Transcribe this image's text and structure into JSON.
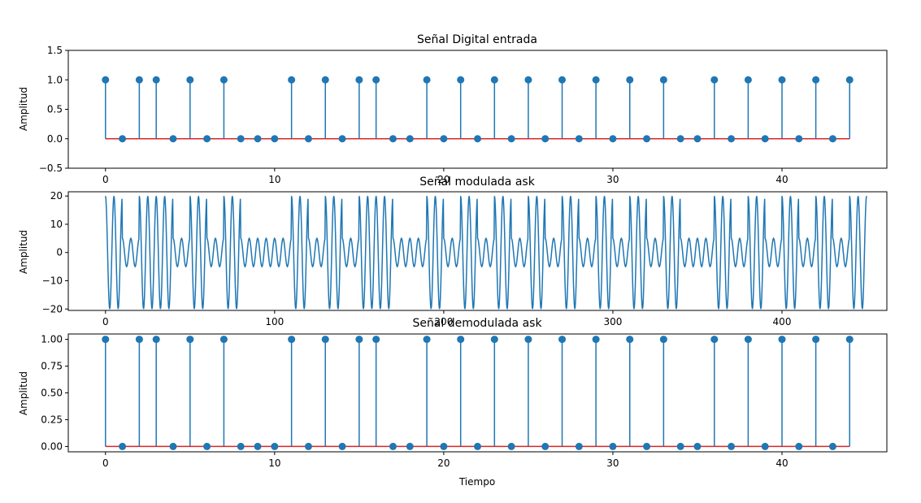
{
  "chart_data": [
    {
      "type": "stem",
      "title": "Señal Digital entrada",
      "xlabel": "",
      "ylabel": "Amplitud",
      "xlim": [
        -2.2,
        46.2
      ],
      "ylim": [
        -0.5,
        1.5
      ],
      "xticks": [
        0,
        10,
        20,
        30,
        40
      ],
      "yticks": [
        -0.5,
        0.0,
        0.5,
        1.0,
        1.5
      ],
      "ytick_labels": [
        "−0.5",
        "0.0",
        "0.5",
        "1.0",
        "1.5"
      ],
      "baseline": 0,
      "x": [
        0,
        1,
        2,
        3,
        4,
        5,
        6,
        7,
        8,
        9,
        10,
        11,
        12,
        13,
        14,
        15,
        16,
        17,
        18,
        19,
        20,
        21,
        22,
        23,
        24,
        25,
        26,
        27,
        28,
        29,
        30,
        31,
        32,
        33,
        34,
        35,
        36,
        37,
        38,
        39,
        40,
        41,
        42,
        43,
        44
      ],
      "values": [
        1,
        0,
        1,
        1,
        0,
        1,
        0,
        1,
        0,
        0,
        0,
        1,
        0,
        1,
        0,
        1,
        1,
        0,
        0,
        1,
        0,
        1,
        0,
        1,
        0,
        1,
        0,
        1,
        0,
        1,
        0,
        1,
        0,
        1,
        0,
        0,
        1,
        0,
        1,
        0,
        1,
        0,
        1,
        0,
        1
      ]
    },
    {
      "type": "line",
      "title": "Señal modulada ask",
      "xlabel": "",
      "ylabel": "Amplitud",
      "xlim": [
        -22,
        462
      ],
      "ylim": [
        -20.5,
        21.5
      ],
      "xticks": [
        0,
        100,
        200,
        300,
        400
      ],
      "yticks": [
        -20,
        -10,
        0,
        10,
        20
      ],
      "ytick_labels": [
        "−20",
        "−10",
        "0",
        "10",
        "20"
      ],
      "samples_per_bit": 10,
      "carrier_cycles_per_bit": 2,
      "amplitude_high": 20,
      "amplitude_low": 5,
      "x_range": [
        0,
        450
      ]
    },
    {
      "type": "stem",
      "title": "Señal demodulada ask",
      "xlabel": "Tiempo",
      "ylabel": "Amplitud",
      "xlim": [
        -2.2,
        46.2
      ],
      "ylim": [
        -0.05,
        1.05
      ],
      "xticks": [
        0,
        10,
        20,
        30,
        40
      ],
      "yticks": [
        0.0,
        0.25,
        0.5,
        0.75,
        1.0
      ],
      "ytick_labels": [
        "0.00",
        "0.25",
        "0.50",
        "0.75",
        "1.00"
      ],
      "baseline": 0,
      "x": [
        0,
        1,
        2,
        3,
        4,
        5,
        6,
        7,
        8,
        9,
        10,
        11,
        12,
        13,
        14,
        15,
        16,
        17,
        18,
        19,
        20,
        21,
        22,
        23,
        24,
        25,
        26,
        27,
        28,
        29,
        30,
        31,
        32,
        33,
        34,
        35,
        36,
        37,
        38,
        39,
        40,
        41,
        42,
        43,
        44
      ],
      "values": [
        1,
        0,
        1,
        1,
        0,
        1,
        0,
        1,
        0,
        0,
        0,
        1,
        0,
        1,
        0,
        1,
        1,
        0,
        0,
        1,
        0,
        1,
        0,
        1,
        0,
        1,
        0,
        1,
        0,
        1,
        0,
        1,
        0,
        1,
        0,
        0,
        1,
        0,
        1,
        0,
        1,
        0,
        1,
        0,
        1
      ]
    }
  ],
  "colors": {
    "stem": "#1f77b4",
    "baseline": "#d62728",
    "line": "#1f77b4",
    "axes": "#000000"
  }
}
